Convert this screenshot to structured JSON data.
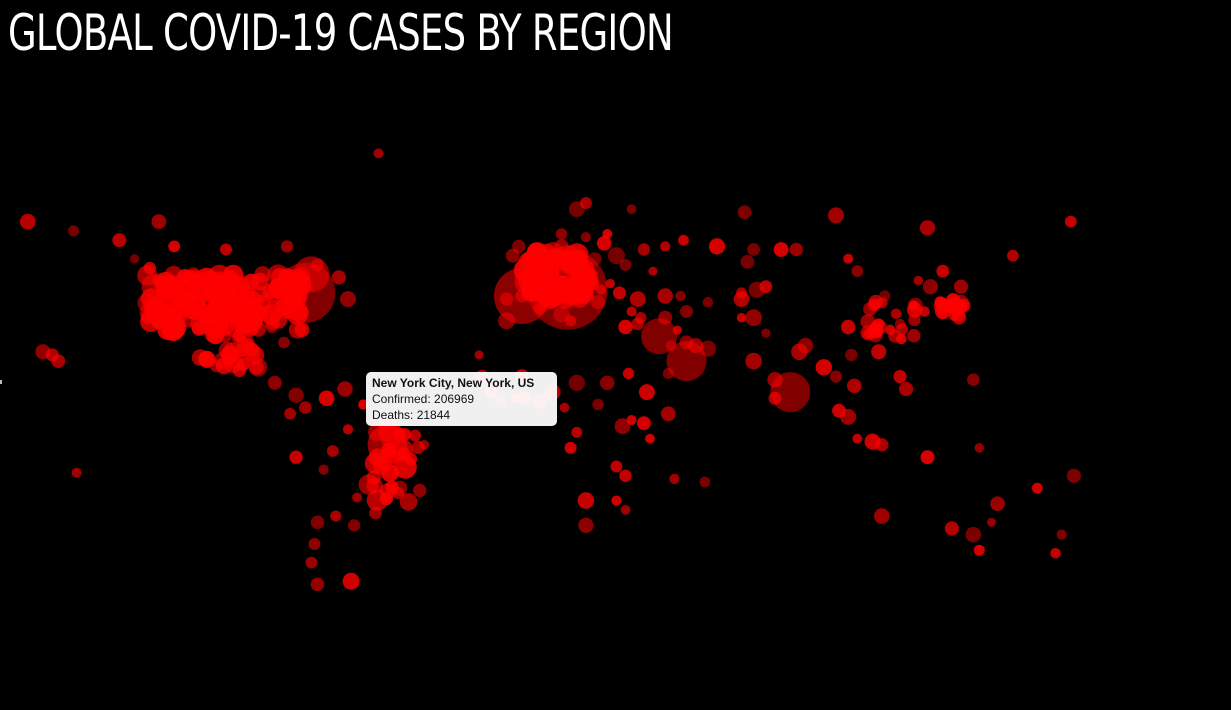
{
  "page": {
    "title": "GLOBAL COVID-19 CASES BY REGION"
  },
  "colors": {
    "background": "#000000",
    "bubble": "#ff0000",
    "title": "#ffffff",
    "tooltip_bg": "#ffffff"
  },
  "tooltip": {
    "place": "New York City, New York, US",
    "confirmed_label": "Confirmed:",
    "confirmed": "206969",
    "deaths_label": "Deaths:",
    "deaths": "21844"
  },
  "chart_data": {
    "type": "scatter",
    "title": "GLOBAL COVID-19 CASES BY REGION",
    "x_unit": "longitude",
    "y_unit": "latitude",
    "marks": "bubbles sized by confirmed cases, semi-transparent red",
    "grid": false,
    "legend": "none",
    "highlighted": {
      "place": "New York City, New York, US",
      "confirmed": 206969,
      "deaths": 21844
    },
    "points": [
      {
        "x": -122,
        "y": 64
      },
      {
        "x": -150,
        "y": 61
      },
      {
        "x": -165,
        "y": 64
      },
      {
        "x": -135,
        "y": 58
      },
      {
        "x": -117,
        "y": 56
      },
      {
        "x": -100,
        "y": 55
      },
      {
        "x": -80,
        "y": 56
      },
      {
        "x": -50,
        "y": 86
      },
      {
        "x": -130,
        "y": 52
      },
      {
        "x": -125,
        "y": 49
      },
      {
        "x": -110,
        "y": 45
      },
      {
        "x": -100,
        "y": 46
      },
      {
        "x": -95,
        "y": 44
      },
      {
        "x": -88,
        "y": 47
      },
      {
        "x": -75,
        "y": 44
      },
      {
        "x": -70,
        "y": 50
      },
      {
        "x": -63,
        "y": 46
      },
      {
        "x": -60,
        "y": 39
      },
      {
        "x": -75,
        "y": 41
      },
      {
        "x": -110,
        "y": 35
      },
      {
        "x": -115,
        "y": 33
      },
      {
        "x": -102,
        "y": 29
      },
      {
        "x": -90,
        "y": 32
      },
      {
        "x": -85,
        "y": 30
      },
      {
        "x": -81,
        "y": 25
      },
      {
        "x": -99,
        "y": 19
      },
      {
        "x": -90,
        "y": 17
      },
      {
        "x": -84,
        "y": 12
      },
      {
        "x": -77,
        "y": 8
      },
      {
        "x": -79,
        "y": 2
      },
      {
        "x": -74,
        "y": 4
      },
      {
        "x": -67,
        "y": 7
      },
      {
        "x": -61,
        "y": 10
      },
      {
        "x": -55,
        "y": 5
      },
      {
        "x": -48,
        "y": -1
      },
      {
        "x": -38,
        "y": -5
      },
      {
        "x": -35,
        "y": -8
      },
      {
        "x": -60,
        "y": -3
      },
      {
        "x": -65,
        "y": -10
      },
      {
        "x": -77,
        "y": -12
      },
      {
        "x": -68,
        "y": -16
      },
      {
        "x": -57,
        "y": -25
      },
      {
        "x": -47,
        "y": -23
      },
      {
        "x": -43,
        "y": -22
      },
      {
        "x": -49,
        "y": -15
      },
      {
        "x": -51,
        "y": -30
      },
      {
        "x": -58,
        "y": -34
      },
      {
        "x": -64,
        "y": -31
      },
      {
        "x": -70,
        "y": -33
      },
      {
        "x": -71,
        "y": -40
      },
      {
        "x": -72,
        "y": -46
      },
      {
        "x": -70,
        "y": -53
      },
      {
        "x": -59,
        "y": -52
      },
      {
        "x": -157,
        "y": 21
      },
      {
        "x": -160,
        "y": 22
      },
      {
        "x": -155,
        "y": 19
      },
      {
        "x": -149,
        "y": -17
      },
      {
        "x": -3,
        "y": 40
      },
      {
        "x": -8,
        "y": 39
      },
      {
        "x": 2,
        "y": 48
      },
      {
        "x": 12,
        "y": 42
      },
      {
        "x": 9,
        "y": 45
      },
      {
        "x": 10,
        "y": 51
      },
      {
        "x": 13,
        "y": 52
      },
      {
        "x": 4,
        "y": 50
      },
      {
        "x": 5,
        "y": 52
      },
      {
        "x": -1,
        "y": 52
      },
      {
        "x": -6,
        "y": 53
      },
      {
        "x": -4,
        "y": 56
      },
      {
        "x": 10,
        "y": 56
      },
      {
        "x": 18,
        "y": 59
      },
      {
        "x": 10,
        "y": 60
      },
      {
        "x": 25,
        "y": 60
      },
      {
        "x": 24,
        "y": 57
      },
      {
        "x": 21,
        "y": 52
      },
      {
        "x": 15,
        "y": 50
      },
      {
        "x": 16,
        "y": 48
      },
      {
        "x": 19,
        "y": 47
      },
      {
        "x": 26,
        "y": 44
      },
      {
        "x": 23,
        "y": 42
      },
      {
        "x": 20,
        "y": 44
      },
      {
        "x": 15,
        "y": 45
      },
      {
        "x": 22,
        "y": 38
      },
      {
        "x": 33,
        "y": 35
      },
      {
        "x": 35,
        "y": 39
      },
      {
        "x": 29,
        "y": 41
      },
      {
        "x": 37,
        "y": 55
      },
      {
        "x": 31,
        "y": 50
      },
      {
        "x": 28,
        "y": 53
      },
      {
        "x": 44,
        "y": 40
      },
      {
        "x": 49,
        "y": 40
      },
      {
        "x": 51,
        "y": 35
      },
      {
        "x": 44,
        "y": 33
      },
      {
        "x": 35,
        "y": 31
      },
      {
        "x": 36,
        "y": 33
      },
      {
        "x": 46,
        "y": 24
      },
      {
        "x": 51,
        "y": 25
      },
      {
        "x": 54,
        "y": 24
      },
      {
        "x": 58,
        "y": 23
      },
      {
        "x": 48,
        "y": 29
      },
      {
        "x": 45,
        "y": 15
      },
      {
        "x": 69,
        "y": 33
      },
      {
        "x": 73,
        "y": 33
      },
      {
        "x": 77,
        "y": 28
      },
      {
        "x": 73,
        "y": 19
      },
      {
        "x": 80,
        "y": 13
      },
      {
        "x": 80,
        "y": 7
      },
      {
        "x": 88,
        "y": 22
      },
      {
        "x": 90,
        "y": 24
      },
      {
        "x": 96,
        "y": 17
      },
      {
        "x": 100,
        "y": 14
      },
      {
        "x": 105,
        "y": 21
      },
      {
        "x": 106,
        "y": 11
      },
      {
        "x": 101,
        "y": 3
      },
      {
        "x": 104,
        "y": 1
      },
      {
        "x": 107,
        "y": -6
      },
      {
        "x": 112,
        "y": -7
      },
      {
        "x": 115,
        "y": -8
      },
      {
        "x": 121,
        "y": 14
      },
      {
        "x": 123,
        "y": 10
      },
      {
        "x": 114,
        "y": 22
      },
      {
        "x": 116,
        "y": 40
      },
      {
        "x": 121,
        "y": 31
      },
      {
        "x": 114,
        "y": 30
      },
      {
        "x": 104,
        "y": 30
      },
      {
        "x": 126,
        "y": 37
      },
      {
        "x": 129,
        "y": 35
      },
      {
        "x": 127,
        "y": 45
      },
      {
        "x": 135,
        "y": 35
      },
      {
        "x": 139,
        "y": 36
      },
      {
        "x": 141,
        "y": 38
      },
      {
        "x": 141,
        "y": 43
      },
      {
        "x": 131,
        "y": 43
      },
      {
        "x": 104,
        "y": 52
      },
      {
        "x": 87,
        "y": 55
      },
      {
        "x": 82,
        "y": 55
      },
      {
        "x": 73,
        "y": 55
      },
      {
        "x": 61,
        "y": 56
      },
      {
        "x": 50,
        "y": 58
      },
      {
        "x": 44,
        "y": 56
      },
      {
        "x": 40,
        "y": 48
      },
      {
        "x": 71,
        "y": 51
      },
      {
        "x": 77,
        "y": 43
      },
      {
        "x": 69,
        "y": 41
      },
      {
        "x": 58,
        "y": 38
      },
      {
        "x": 69,
        "y": 39
      },
      {
        "x": 74,
        "y": 42
      },
      {
        "x": 107,
        "y": 48
      },
      {
        "x": 135,
        "y": 48
      },
      {
        "x": 158,
        "y": 53
      },
      {
        "x": 177,
        "y": 64
      },
      {
        "x": 130,
        "y": 62
      },
      {
        "x": 100,
        "y": 66
      },
      {
        "x": 70,
        "y": 67
      },
      {
        "x": 33,
        "y": 68
      },
      {
        "x": 15,
        "y": 68
      },
      {
        "x": 18,
        "y": 70
      },
      {
        "x": -3,
        "y": 14
      },
      {
        "x": -16,
        "y": 14
      },
      {
        "x": -17,
        "y": 21
      },
      {
        "x": -8,
        "y": 32
      },
      {
        "x": 3,
        "y": 36
      },
      {
        "x": 10,
        "y": 34
      },
      {
        "x": 13,
        "y": 32
      },
      {
        "x": 31,
        "y": 30
      },
      {
        "x": 32,
        "y": 15
      },
      {
        "x": 38,
        "y": 9
      },
      {
        "x": 45,
        "y": 2
      },
      {
        "x": 37,
        "y": -1
      },
      {
        "x": 33,
        "y": 0
      },
      {
        "x": 30,
        "y": -2
      },
      {
        "x": 39,
        "y": -6
      },
      {
        "x": 28,
        "y": -15
      },
      {
        "x": 31,
        "y": -18
      },
      {
        "x": 28,
        "y": -26
      },
      {
        "x": 18,
        "y": -26
      },
      {
        "x": 18,
        "y": -34
      },
      {
        "x": 31,
        "y": -29
      },
      {
        "x": 47,
        "y": -19
      },
      {
        "x": 57,
        "y": -20
      },
      {
        "x": 15,
        "y": -4
      },
      {
        "x": 13,
        "y": -9
      },
      {
        "x": 11,
        "y": 4
      },
      {
        "x": 15,
        "y": 12
      },
      {
        "x": 7,
        "y": 9
      },
      {
        "x": 3,
        "y": 6
      },
      {
        "x": -2,
        "y": 7
      },
      {
        "x": -5,
        "y": 7
      },
      {
        "x": -13,
        "y": 9
      },
      {
        "x": -10,
        "y": 6
      },
      {
        "x": 22,
        "y": 5
      },
      {
        "x": 25,
        "y": 12
      },
      {
        "x": 130,
        "y": -12
      },
      {
        "x": 115,
        "y": -31
      },
      {
        "x": 138,
        "y": -35
      },
      {
        "x": 145,
        "y": -37
      },
      {
        "x": 151,
        "y": -33
      },
      {
        "x": 153,
        "y": -27
      },
      {
        "x": 147,
        "y": -42
      },
      {
        "x": 174,
        "y": -37
      },
      {
        "x": 172,
        "y": -43
      },
      {
        "x": 166,
        "y": -22
      },
      {
        "x": 178,
        "y": -18
      },
      {
        "x": 145,
        "y": 13
      },
      {
        "x": 147,
        "y": -9
      }
    ]
  }
}
